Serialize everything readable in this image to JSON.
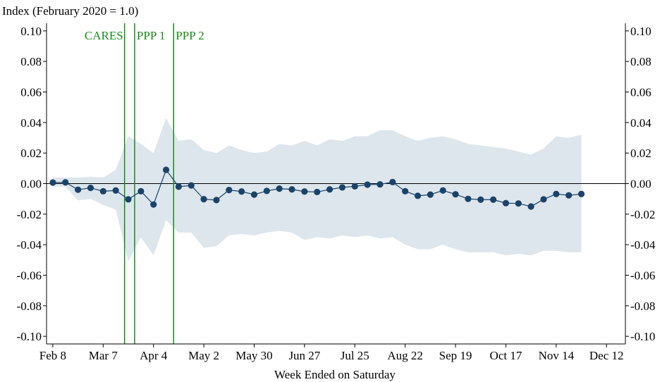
{
  "chart_data": {
    "type": "line",
    "title": "Index (February 2020 = 1.0)",
    "xlabel": "Week Ended on Saturday",
    "ylabel": "Index (February 2020 = 1.0)",
    "x_tick_labels": [
      "Feb 8",
      "Mar 7",
      "Apr 4",
      "May 2",
      "May 30",
      "Jun 27",
      "Jul 25",
      "Aug 22",
      "Sep 19",
      "Oct 17",
      "Nov 14",
      "Dec 12"
    ],
    "x_tick_weeks": [
      0,
      4,
      8,
      12,
      16,
      20,
      24,
      28,
      32,
      36,
      40,
      44
    ],
    "y_tick_labels": [
      "0.10",
      "0.08",
      "0.06",
      "0.04",
      "0.02",
      "0.00",
      "-0.02",
      "-0.04",
      "-0.06",
      "-0.08",
      "-0.10"
    ],
    "ylim": [
      -0.105,
      0.105
    ],
    "xlim": [
      -0.5,
      45.5
    ],
    "grid": false,
    "series": [
      {
        "values": [
          0.0007,
          0.0008,
          -0.004,
          -0.0028,
          -0.005,
          -0.0045,
          -0.0103,
          -0.005,
          -0.0137,
          0.009,
          -0.002,
          -0.0012,
          -0.0102,
          -0.0108,
          -0.0042,
          -0.0052,
          -0.0072,
          -0.0048,
          -0.0033,
          -0.0038,
          -0.0052,
          -0.0055,
          -0.0038,
          -0.0025,
          -0.0018,
          -0.0007,
          -0.0005,
          0.001,
          -0.005,
          -0.008,
          -0.0072,
          -0.0045,
          -0.007,
          -0.01,
          -0.0105,
          -0.0105,
          -0.0128,
          -0.013,
          -0.015,
          -0.0103,
          -0.0068,
          -0.0077,
          -0.0068
        ]
      }
    ],
    "confidence_band": {
      "upper": [
        0.004,
        0.004,
        0.004,
        0.0045,
        0.004,
        0.009,
        0.031,
        0.026,
        0.02,
        0.043,
        0.028,
        0.029,
        0.022,
        0.02,
        0.025,
        0.022,
        0.02,
        0.021,
        0.026,
        0.025,
        0.028,
        0.025,
        0.029,
        0.028,
        0.031,
        0.031,
        0.035,
        0.035,
        0.031,
        0.028,
        0.03,
        0.031,
        0.029,
        0.026,
        0.025,
        0.024,
        0.023,
        0.021,
        0.019,
        0.023,
        0.031,
        0.03,
        0.032
      ],
      "lower": [
        -0.002,
        -0.002,
        -0.011,
        -0.01,
        -0.014,
        -0.017,
        -0.051,
        -0.035,
        -0.047,
        -0.024,
        -0.032,
        -0.032,
        -0.042,
        -0.041,
        -0.034,
        -0.033,
        -0.034,
        -0.032,
        -0.031,
        -0.032,
        -0.037,
        -0.035,
        -0.036,
        -0.034,
        -0.035,
        -0.034,
        -0.036,
        -0.035,
        -0.04,
        -0.043,
        -0.043,
        -0.04,
        -0.043,
        -0.045,
        -0.045,
        -0.045,
        -0.047,
        -0.046,
        -0.047,
        -0.044,
        -0.044,
        -0.045,
        -0.045
      ]
    },
    "annotations": [
      {
        "label": "CARES",
        "week": 5.7,
        "label_side": "left"
      },
      {
        "label": "PPP 1",
        "week": 6.5,
        "label_side": "right"
      },
      {
        "label": "PPP 2",
        "week": 9.6,
        "label_side": "right"
      }
    ],
    "colors": {
      "line": "#1a4369",
      "marker": "#1a4369",
      "band": "#dde6ed",
      "annotation": "#1a8c1a",
      "axis": "#000000",
      "zero_line": "#000000"
    }
  }
}
